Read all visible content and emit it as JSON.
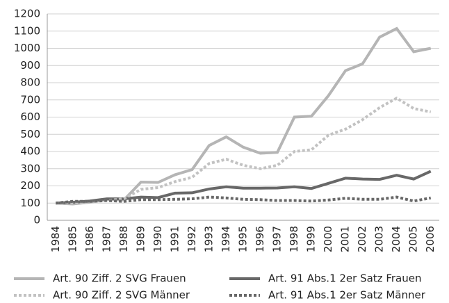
{
  "chart_data": {
    "type": "line",
    "categories": [
      "1984",
      "1985",
      "1986",
      "1987",
      "1988",
      "1989",
      "1990",
      "1991",
      "1992",
      "1993",
      "1994",
      "1995",
      "1996",
      "1997",
      "1998",
      "1999",
      "2000",
      "2001",
      "2002",
      "2003",
      "2004",
      "2005",
      "2006"
    ],
    "series": [
      {
        "name": "Art. 90 Ziff. 2 SVG Frauen",
        "color": "#b5b5b5",
        "style": "solid",
        "values": [
          100,
          95,
          105,
          120,
          118,
          222,
          220,
          265,
          295,
          435,
          485,
          425,
          390,
          395,
          600,
          605,
          725,
          870,
          910,
          1065,
          1115,
          980,
          1000
        ]
      },
      {
        "name": "Art. 91 Abs.1 2er Satz Frauen",
        "color": "#686868",
        "style": "solid",
        "values": [
          100,
          105,
          112,
          125,
          125,
          135,
          132,
          158,
          160,
          182,
          195,
          187,
          187,
          188,
          195,
          185,
          215,
          245,
          240,
          238,
          262,
          240,
          285
        ]
      },
      {
        "name": "Art. 90 Ziff. 2 SVG Männer",
        "color": "#c2c2c2",
        "style": "dotted",
        "values": [
          100,
          100,
          108,
          115,
          125,
          180,
          190,
          225,
          250,
          330,
          355,
          320,
          300,
          320,
          400,
          410,
          495,
          530,
          585,
          655,
          710,
          650,
          630
        ]
      },
      {
        "name": "Art. 91 Abs.1 2er Satz Männer",
        "color": "#686868",
        "style": "dotted",
        "values": [
          100,
          110,
          110,
          115,
          110,
          120,
          120,
          122,
          125,
          135,
          130,
          122,
          120,
          115,
          115,
          112,
          118,
          128,
          122,
          122,
          135,
          112,
          130
        ]
      }
    ],
    "ylim": [
      0,
      1200
    ],
    "yticks": [
      0,
      100,
      200,
      300,
      400,
      500,
      600,
      700,
      800,
      900,
      1000,
      1100,
      1200
    ],
    "grid": true
  }
}
